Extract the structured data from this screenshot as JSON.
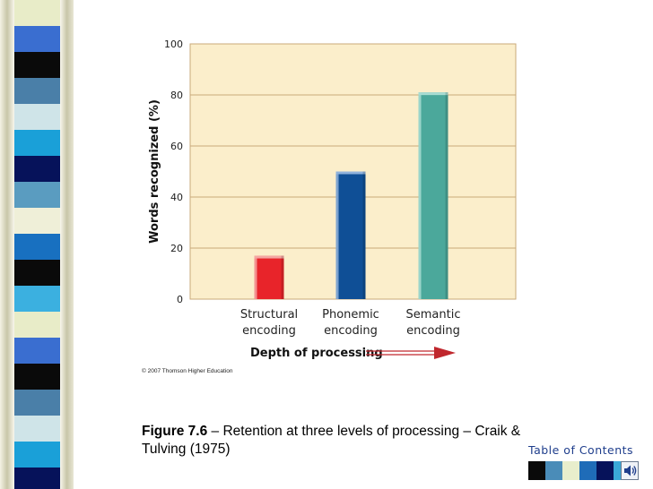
{
  "chart_data": {
    "type": "bar",
    "categories": [
      [
        "Structural",
        "encoding"
      ],
      [
        "Phonemic",
        "encoding"
      ],
      [
        "Semantic",
        "encoding"
      ]
    ],
    "values": [
      17,
      50,
      81
    ],
    "bar_colors": [
      "#e8242a",
      "#0f4f96",
      "#4ba89b"
    ],
    "bar_highlight_colors": [
      "#f4a6a2",
      "#8fb2dc",
      "#a8dcd2"
    ],
    "ylabel": "Words recognized (%)",
    "xlabel": "Depth of processing",
    "yticks": [
      0,
      20,
      40,
      60,
      80,
      100
    ],
    "ylim": [
      0,
      100
    ],
    "grid": true,
    "plot_background": "#fbeecb"
  },
  "copyright": "© 2007 Thomson Higher Education",
  "caption": {
    "figure_label": "Figure 7.6",
    "text": " – Retention at three levels of processing – Craik & Tulving (1975)"
  },
  "toc_label": "Table of Contents",
  "colors": {
    "arrow": "#c0272d",
    "grid": "#c9a97a",
    "accent_text": "#1f3e8c",
    "sidebar_tiles": [
      "#e8ecc8",
      "#3a6ed0",
      "#0a0a0a",
      "#4a7fa8",
      "#cfe4e8",
      "#1aa0d8",
      "#06125a",
      "#5a9cc0",
      "#efefd8",
      "#1870c0",
      "#0a0a0a",
      "#3bb0e0"
    ],
    "swatches": [
      "#0a0a0a",
      "#4a8cb8",
      "#e8eecc",
      "#1f6cb8",
      "#06125a",
      "#3aa8d8"
    ]
  },
  "icons": {
    "sound": "speaker-icon"
  }
}
